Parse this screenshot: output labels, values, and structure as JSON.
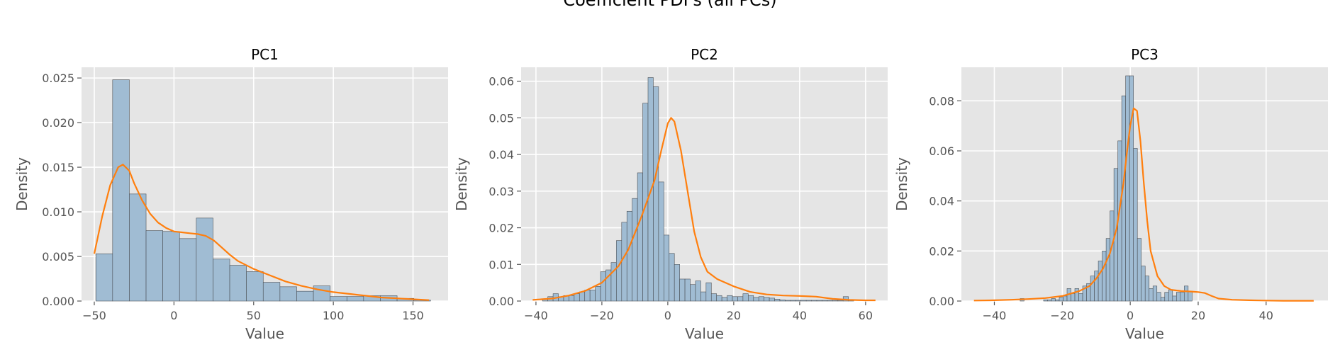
{
  "figure": {
    "title": "Coefficient PDFs (all PCs)"
  },
  "style": {
    "panel_bg": "#e5e5e5",
    "grid": "#ffffff",
    "bar_fill": "#a0bcd3",
    "bar_edge": "#4a4f55",
    "kde": "#ff7f0e",
    "text": "#555555"
  },
  "chart_data": [
    {
      "type": "bar",
      "title": "PC1",
      "xlabel": "Value",
      "ylabel": "Density",
      "xlim": [
        -58,
        172
      ],
      "ylim": [
        0,
        0.0262
      ],
      "grid": true,
      "xticks": [
        -50,
        0,
        50,
        100,
        150
      ],
      "xtick_labels": [
        "−50",
        "0",
        "50",
        "100",
        "150"
      ],
      "yticks": [
        0,
        0.005,
        0.01,
        0.015,
        0.02,
        0.025
      ],
      "ytick_labels": [
        "0.000",
        "0.005",
        "0.010",
        "0.015",
        "0.020",
        "0.025"
      ],
      "bins": {
        "start": -49,
        "width": 10.5
      },
      "values": [
        0.0053,
        0.0248,
        0.012,
        0.0079,
        0.0078,
        0.007,
        0.0093,
        0.0047,
        0.004,
        0.0033,
        0.0021,
        0.0016,
        0.0011,
        0.0017,
        0.0005,
        0.0005,
        0.0006,
        0.0006,
        0.0003,
        0.0001
      ],
      "kde": {
        "x": [
          -50,
          -45,
          -40,
          -35,
          -32,
          -28,
          -25,
          -20,
          -15,
          -10,
          -5,
          0,
          5,
          10,
          15,
          20,
          25,
          30,
          35,
          40,
          50,
          60,
          70,
          80,
          90,
          100,
          110,
          120,
          130,
          140,
          150,
          160
        ],
        "y": [
          0.0053,
          0.0095,
          0.013,
          0.015,
          0.0153,
          0.0146,
          0.0132,
          0.0113,
          0.0098,
          0.0088,
          0.0082,
          0.0078,
          0.0077,
          0.0076,
          0.0075,
          0.0073,
          0.0068,
          0.006,
          0.0052,
          0.0045,
          0.0036,
          0.0029,
          0.0022,
          0.0017,
          0.0013,
          0.001,
          0.0008,
          0.0006,
          0.0004,
          0.0003,
          0.0002,
          0.0001
        ]
      }
    },
    {
      "type": "bar",
      "title": "PC2",
      "xlabel": "Value",
      "ylabel": "Density",
      "xlim": [
        -44.5,
        66.7
      ],
      "ylim": [
        0,
        0.0638
      ],
      "grid": true,
      "xticks": [
        -40,
        -20,
        0,
        20,
        40,
        60
      ],
      "xtick_labels": [
        "−40",
        "−20",
        "0",
        "20",
        "40",
        "60"
      ],
      "yticks": [
        0,
        0.01,
        0.02,
        0.03,
        0.04,
        0.05,
        0.06
      ],
      "ytick_labels": [
        "0.00",
        "0.01",
        "0.02",
        "0.03",
        "0.04",
        "0.05",
        "0.06"
      ],
      "bins": {
        "start": -38,
        "width": 1.6
      },
      "values": [
        0.0005,
        0.0012,
        0.002,
        0.0012,
        0.0015,
        0.0015,
        0.002,
        0.0025,
        0.003,
        0.003,
        0.004,
        0.008,
        0.0085,
        0.0105,
        0.0165,
        0.0215,
        0.0245,
        0.028,
        0.035,
        0.054,
        0.061,
        0.0585,
        0.0325,
        0.018,
        0.013,
        0.01,
        0.006,
        0.006,
        0.0045,
        0.0055,
        0.0025,
        0.005,
        0.002,
        0.0015,
        0.001,
        0.0015,
        0.0012,
        0.0012,
        0.002,
        0.0015,
        0.001,
        0.0012,
        0.001,
        0.0008,
        0.0005,
        0.0003,
        0.0002,
        0.0002,
        0.0002,
        0.0002,
        0.0002,
        0.0002,
        0.0002,
        0.0002,
        0.0002,
        0.0002,
        0.0002,
        0.0012,
        0.0002
      ],
      "kde": {
        "x": [
          -41,
          -35,
          -30,
          -25,
          -20,
          -15,
          -12,
          -10,
          -8,
          -6,
          -4,
          -2,
          0,
          1,
          2,
          4,
          6,
          8,
          10,
          12,
          15,
          20,
          25,
          30,
          35,
          40,
          45,
          50,
          55,
          60,
          63
        ],
        "y": [
          0.0003,
          0.0007,
          0.0015,
          0.0028,
          0.005,
          0.0095,
          0.014,
          0.0185,
          0.023,
          0.028,
          0.033,
          0.041,
          0.0485,
          0.05,
          0.049,
          0.041,
          0.03,
          0.019,
          0.012,
          0.008,
          0.006,
          0.004,
          0.0025,
          0.0018,
          0.0015,
          0.0014,
          0.0012,
          0.0006,
          0.0003,
          0.0002,
          0.0002
        ]
      }
    },
    {
      "type": "bar",
      "title": "PC3",
      "xlabel": "Value",
      "ylabel": "Density",
      "xlim": [
        -49.7,
        58.2
      ],
      "ylim": [
        0,
        0.0934
      ],
      "grid": true,
      "xticks": [
        -40,
        -20,
        0,
        20,
        40
      ],
      "xtick_labels": [
        "−40",
        "−20",
        "0",
        "20",
        "40"
      ],
      "yticks": [
        0,
        0.02,
        0.04,
        0.06,
        0.08
      ],
      "ytick_labels": [
        "0.00",
        "0.02",
        "0.04",
        "0.06",
        "0.08"
      ],
      "bins": {
        "start": -32.4,
        "width": 1.15
      },
      "values": [
        0.001,
        0,
        0,
        0,
        0,
        0,
        0.0005,
        0.0005,
        0.001,
        0.0005,
        0.0015,
        0.002,
        0.005,
        0.003,
        0.005,
        0.003,
        0.006,
        0.007,
        0.01,
        0.012,
        0.016,
        0.02,
        0.025,
        0.036,
        0.053,
        0.064,
        0.082,
        0.09,
        0.09,
        0.061,
        0.025,
        0.014,
        0.01,
        0.005,
        0.006,
        0.0035,
        0.0015,
        0.0035,
        0.0045,
        0.002,
        0.0035,
        0.0035,
        0.006,
        0.004
      ],
      "kde": {
        "x": [
          -46,
          -40,
          -35,
          -30,
          -25,
          -20,
          -15,
          -12,
          -10,
          -8,
          -6,
          -4,
          -2,
          -1,
          0,
          1,
          2,
          3,
          4,
          5,
          6,
          8,
          10,
          12,
          15,
          18,
          20,
          22,
          24,
          26,
          30,
          35,
          40,
          45,
          50,
          54
        ],
        "y": [
          0.0002,
          0.0003,
          0.0005,
          0.0008,
          0.0012,
          0.002,
          0.004,
          0.006,
          0.009,
          0.013,
          0.019,
          0.029,
          0.047,
          0.059,
          0.07,
          0.077,
          0.076,
          0.064,
          0.047,
          0.032,
          0.02,
          0.01,
          0.006,
          0.0045,
          0.004,
          0.0038,
          0.0036,
          0.0032,
          0.002,
          0.001,
          0.0005,
          0.0003,
          0.0002,
          0.0001,
          0.0001,
          0.0001
        ]
      }
    }
  ]
}
